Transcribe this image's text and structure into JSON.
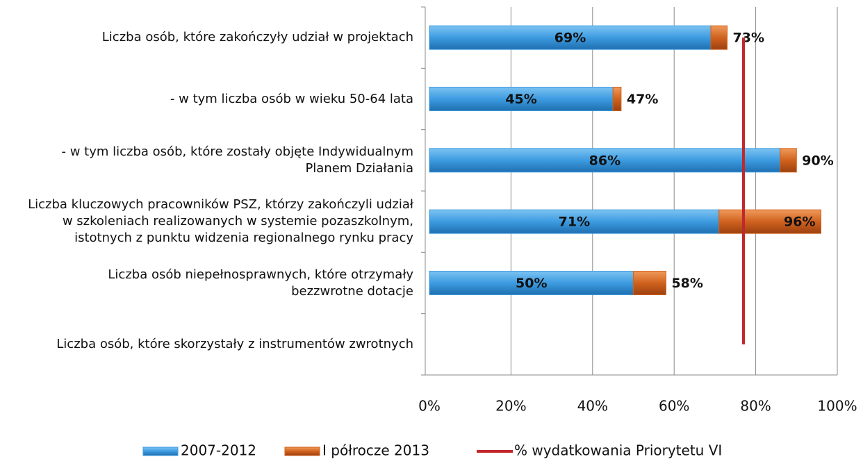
{
  "chart_data": {
    "type": "stacked_barh",
    "categories": [
      "Liczba osób, które zakończyły udział w projektach",
      "- w tym liczba osób w wieku 50-64 lata",
      "- w tym liczba osób, które zostały objęte Indywidualnym\nPlanem Działania",
      "Liczba kluczowych pracowników PSZ, którzy zakończyli udział\nw szkoleniach realizowanych w systemie pozaszkolnym,\nistotnych z punktu widzenia regionalnego rynku pracy",
      "Liczba osób niepełnosprawnych, które otrzymały\nbezzwrotne dotacje",
      "Liczba osób, które skorzystały z instrumentów zwrotnych"
    ],
    "series": [
      {
        "name": "2007-2012",
        "color": "#3d9be0",
        "values": [
          69,
          45,
          86,
          71,
          50,
          null
        ],
        "value_labels": [
          "69%",
          "45%",
          "86%",
          "71%",
          "50%",
          null
        ]
      },
      {
        "name": "I półrocze 2013",
        "color": "#d0621e",
        "values": [
          4,
          2,
          4,
          25,
          8,
          null
        ]
      }
    ],
    "totals": [
      73,
      47,
      90,
      96,
      58,
      null
    ],
    "total_labels": [
      "73%",
      "47%",
      "90%",
      "96%",
      "58%",
      null
    ],
    "reference_line": {
      "name": "% wydatkowania Priorytetu VI",
      "value": 77,
      "color": "#c0282d"
    },
    "xlim": [
      0,
      100
    ],
    "xticks": [
      {
        "value": 0,
        "label": "0%"
      },
      {
        "value": 20,
        "label": "20%"
      },
      {
        "value": 40,
        "label": "40%"
      },
      {
        "value": 60,
        "label": "60%"
      },
      {
        "value": 80,
        "label": "80%"
      },
      {
        "value": 100,
        "label": "100%"
      }
    ],
    "grid": true
  }
}
